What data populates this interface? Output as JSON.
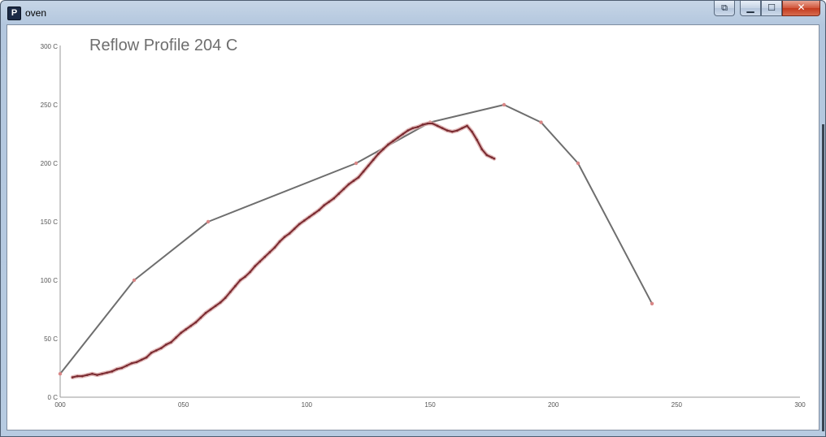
{
  "window": {
    "title": "oven",
    "app_icon": "processing-p-icon",
    "app_icon_glyph": "P",
    "buttons": {
      "extra": "overlay-icon",
      "minimize": "minimize-icon",
      "maximize": "maximize-icon",
      "close": "close-icon"
    }
  },
  "chart_data": {
    "type": "line",
    "title": "Reflow Profile 204 C",
    "xlim": [
      0,
      300
    ],
    "ylim": [
      0,
      300
    ],
    "x_ticks": [
      "000",
      "050",
      "100",
      "150",
      "200",
      "250",
      "300"
    ],
    "y_ticks": [
      "0 C",
      "50 C",
      "100 C",
      "150 C",
      "200 C",
      "250 C",
      "300 C"
    ],
    "grid": false,
    "colors": {
      "target": "#6e6e6e",
      "measured": "#7a2a30",
      "measured_halo": "#d9a7a7",
      "point": "#d98686",
      "axis": "#9a9a9a",
      "title": "#6e6e6e"
    },
    "series": [
      {
        "x": [
          0,
          30,
          60,
          120,
          150,
          180,
          195,
          210,
          240
        ],
        "y": [
          20,
          100,
          150,
          200,
          235,
          250,
          235,
          200,
          80
        ]
      },
      {
        "x": [
          5,
          7,
          9,
          11,
          13,
          15,
          17,
          19,
          21,
          23,
          25,
          27,
          29,
          31,
          33,
          35,
          37,
          39,
          41,
          43,
          45,
          47,
          49,
          51,
          53,
          55,
          57,
          59,
          61,
          63,
          65,
          67,
          69,
          71,
          73,
          75,
          77,
          79,
          81,
          83,
          85,
          87,
          89,
          91,
          93,
          95,
          97,
          99,
          101,
          103,
          105,
          107,
          109,
          111,
          113,
          115,
          117,
          119,
          121,
          123,
          125,
          127,
          129,
          131,
          133,
          135,
          137,
          139,
          141,
          143,
          145,
          147,
          149,
          151,
          153,
          155,
          157,
          159,
          161,
          163,
          165,
          167,
          169,
          171,
          173,
          175,
          176
        ],
        "y": [
          17,
          18,
          18,
          19,
          20,
          19,
          20,
          21,
          22,
          24,
          25,
          27,
          29,
          30,
          32,
          34,
          38,
          40,
          42,
          45,
          47,
          51,
          55,
          58,
          61,
          64,
          68,
          72,
          75,
          78,
          81,
          85,
          90,
          95,
          100,
          103,
          107,
          112,
          116,
          120,
          124,
          128,
          133,
          137,
          140,
          144,
          148,
          151,
          154,
          157,
          160,
          164,
          167,
          170,
          174,
          178,
          182,
          185,
          188,
          193,
          198,
          203,
          208,
          212,
          216,
          219,
          222,
          225,
          228,
          230,
          231,
          233,
          234,
          234,
          232,
          230,
          228,
          227,
          228,
          230,
          232,
          227,
          220,
          212,
          207,
          205,
          204
        ]
      }
    ]
  }
}
